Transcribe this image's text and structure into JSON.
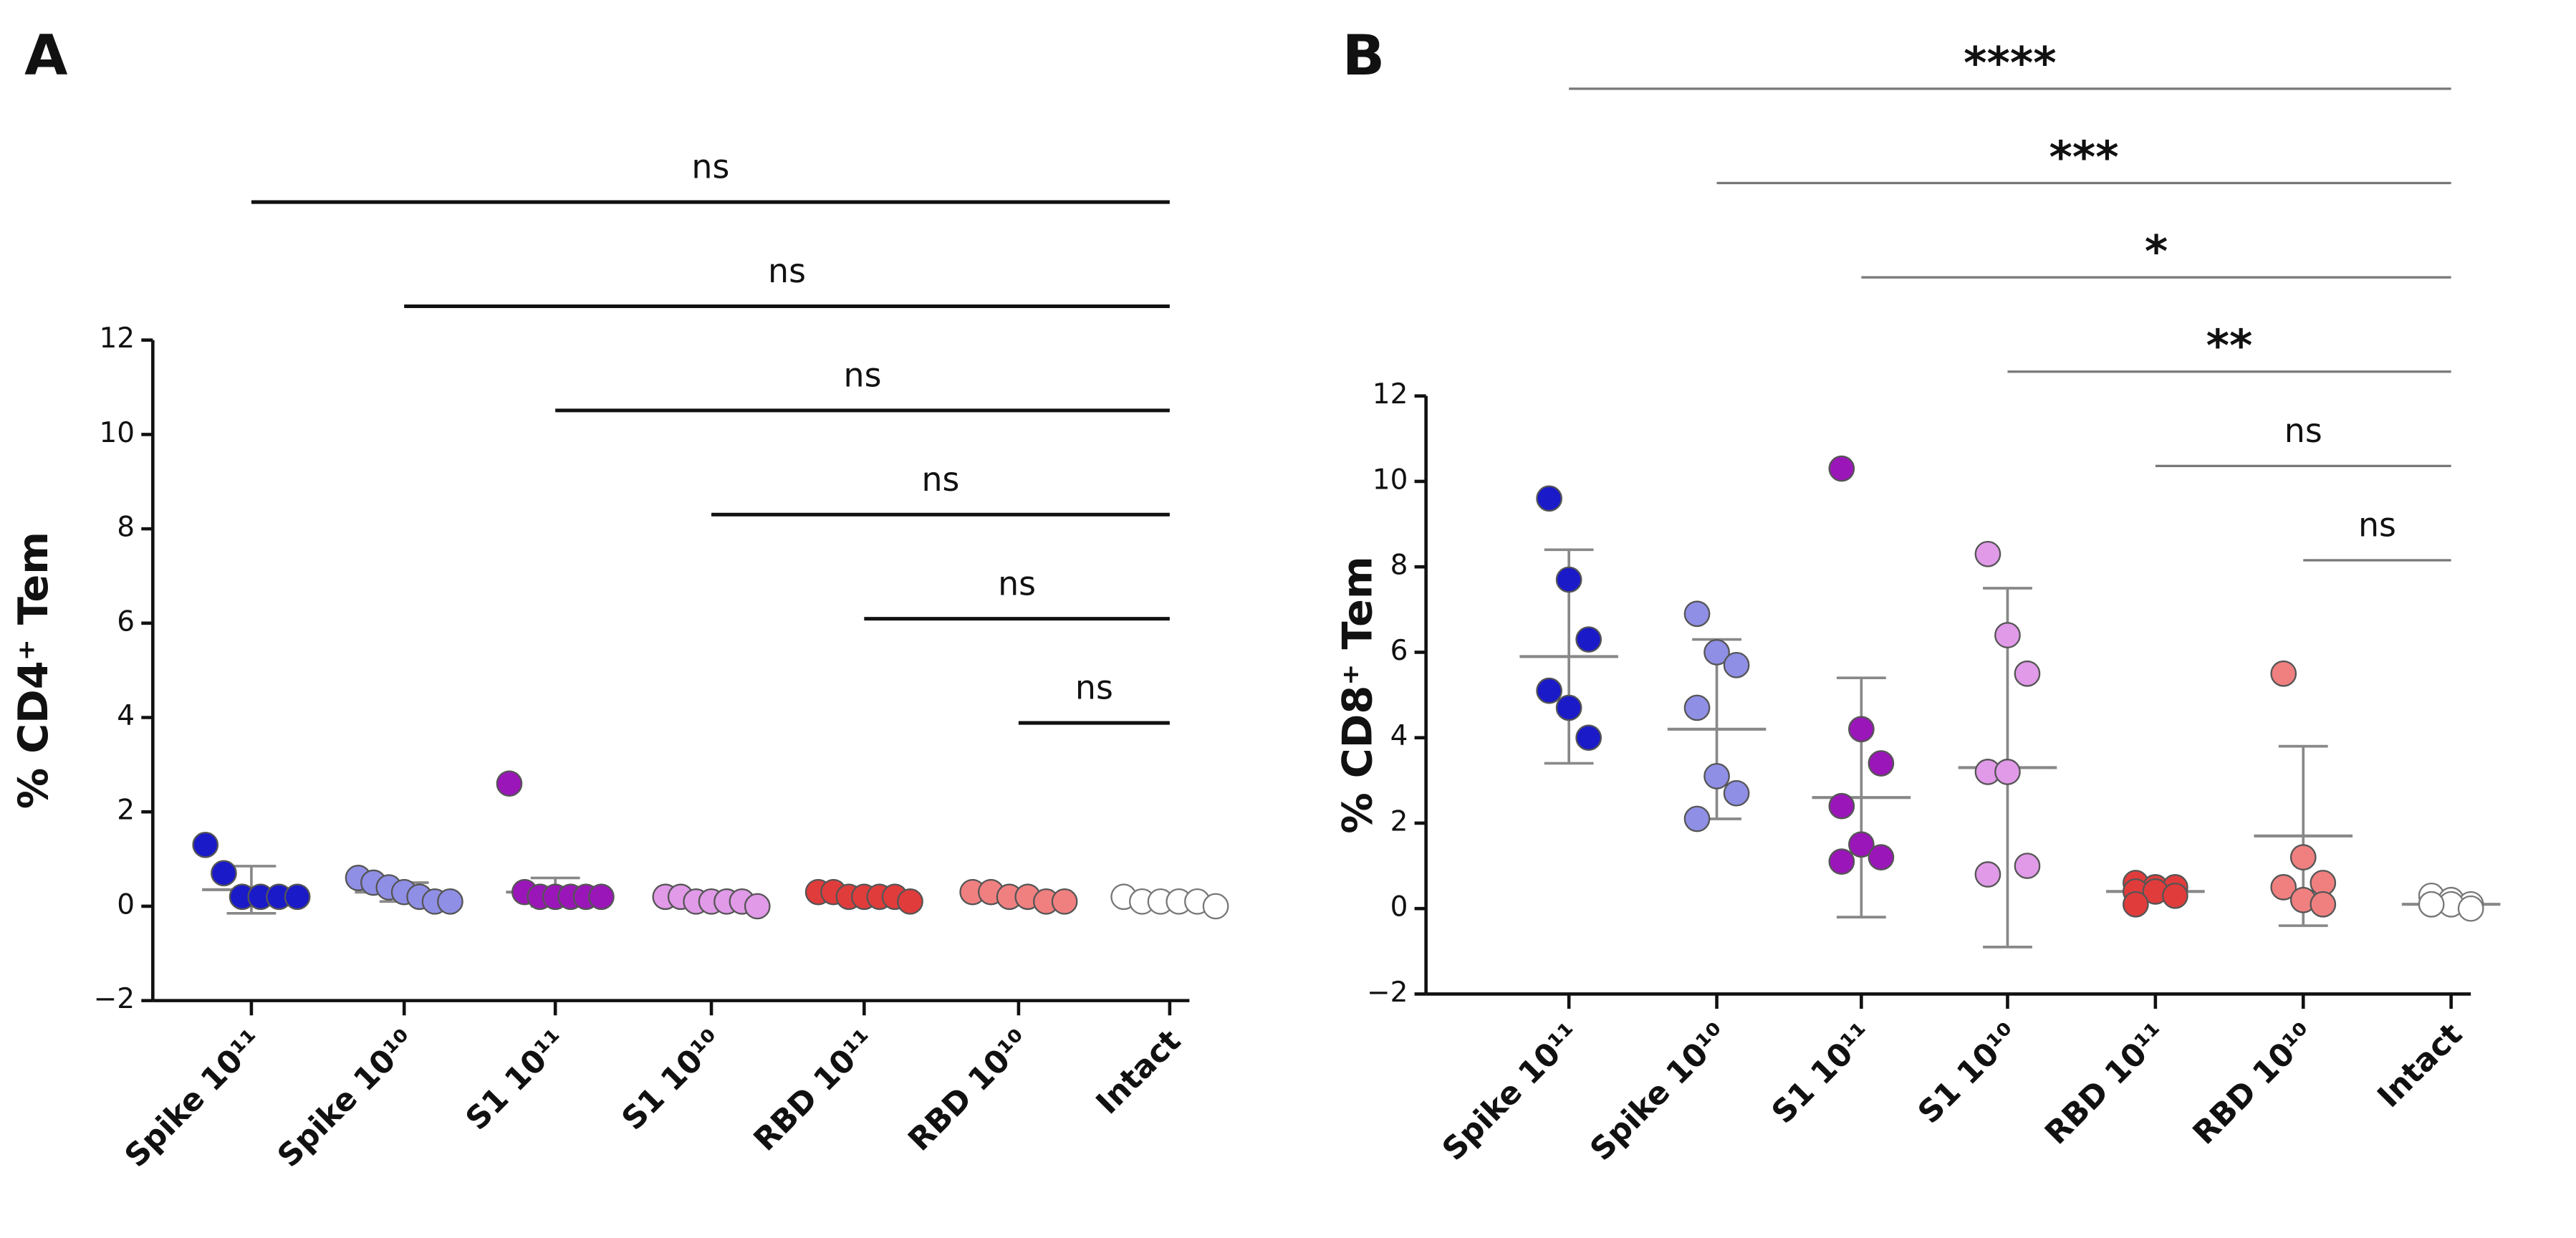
{
  "chart_data": [
    {
      "type": "dot",
      "panel": "A",
      "ylabel": "% CD4⁺ Tem",
      "categories": [
        "Spike 10¹¹",
        "Spike 10¹⁰",
        "S1 10¹¹",
        "S1 10¹⁰",
        "RBD 10¹¹",
        "RBD 10¹⁰",
        "Intact"
      ],
      "colors": [
        "#1a1ac8",
        "#8f8fe6",
        "#9a16b8",
        "#e09ae8",
        "#e03c3c",
        "#f08080",
        "#ffffff"
      ],
      "values": [
        [
          1.3,
          0.7,
          0.2,
          0.2,
          0.2,
          0.2
        ],
        [
          0.6,
          0.5,
          0.4,
          0.3,
          0.2,
          0.1,
          0.1
        ],
        [
          2.6,
          0.3,
          0.2,
          0.2,
          0.2,
          0.2,
          0.2
        ],
        [
          0.2,
          0.2,
          0.1,
          0.1,
          0.1,
          0.1,
          0.0
        ],
        [
          0.3,
          0.3,
          0.2,
          0.2,
          0.2,
          0.2,
          0.1
        ],
        [
          0.3,
          0.3,
          0.2,
          0.2,
          0.1,
          0.1
        ],
        [
          0.2,
          0.1,
          0.1,
          0.1,
          0.1,
          0.0
        ]
      ],
      "means": [
        0.35,
        0.3,
        0.3,
        0.1,
        0.2,
        0.2,
        0.1
      ],
      "sds": [
        0.5,
        0.2,
        0.3,
        0.05,
        0.05,
        0.05,
        0.05
      ],
      "ylim": [
        -2,
        12
      ],
      "yticks": [
        {
          "value": -2,
          "label": "−2"
        },
        0,
        2,
        4,
        6,
        8,
        10,
        12
      ],
      "comparisons": [
        "ns",
        "ns",
        "ns",
        "ns",
        "ns",
        "ns"
      ]
    },
    {
      "type": "dot",
      "panel": "B",
      "ylabel": "% CD8⁺ Tem",
      "categories": [
        "Spike 10¹¹",
        "Spike 10¹⁰",
        "S1 10¹¹",
        "S1 10¹⁰",
        "RBD 10¹¹",
        "RBD 10¹⁰",
        "Intact"
      ],
      "colors": [
        "#1a1ac8",
        "#8f8fe6",
        "#9a16b8",
        "#e09ae8",
        "#e03c3c",
        "#f08080",
        "#ffffff"
      ],
      "values": [
        [
          9.6,
          7.7,
          6.3,
          5.1,
          4.7,
          4.0
        ],
        [
          6.9,
          6.0,
          5.7,
          4.7,
          3.1,
          2.7,
          2.1
        ],
        [
          10.3,
          4.2,
          3.4,
          2.4,
          1.5,
          1.2,
          1.1
        ],
        [
          8.3,
          6.4,
          5.5,
          3.2,
          3.2,
          1.0,
          0.8
        ],
        [
          0.6,
          0.5,
          0.5,
          0.4,
          0.4,
          0.3,
          0.1
        ],
        [
          5.5,
          1.2,
          0.6,
          0.5,
          0.2,
          0.1
        ],
        [
          0.3,
          0.2,
          0.1,
          0.1,
          0.1,
          0.0,
          0.1
        ]
      ],
      "means": [
        5.9,
        4.2,
        2.6,
        3.3,
        0.4,
        1.7,
        0.1
      ],
      "sds": [
        2.5,
        2.1,
        2.8,
        4.2,
        0.2,
        2.1,
        0.1
      ],
      "ylim": [
        -2,
        12
      ],
      "yticks": [
        {
          "value": -2,
          "label": "−2"
        },
        0,
        2,
        4,
        6,
        8,
        10,
        12
      ],
      "comparisons": [
        "****",
        "***",
        "*",
        "**",
        "ns",
        "ns"
      ]
    }
  ]
}
